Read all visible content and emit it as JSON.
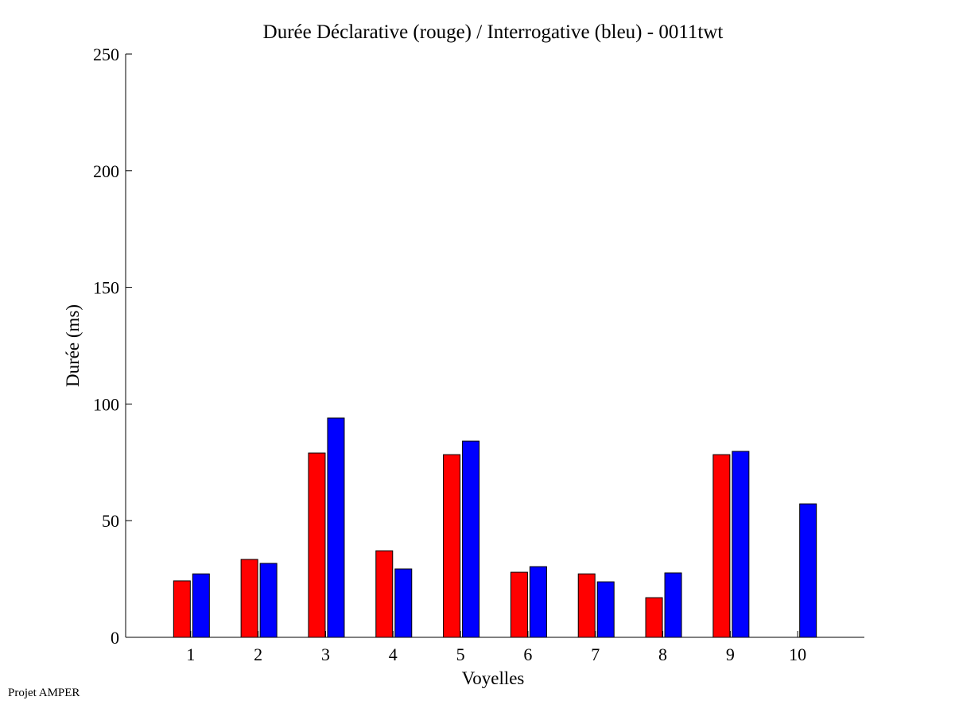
{
  "chart_data": {
    "type": "bar",
    "title": "Durée Déclarative (rouge) / Interrogative (bleu) - 0011twt",
    "xlabel": "Voyelles",
    "ylabel": "Durée (ms)",
    "ylim": [
      0,
      250
    ],
    "xlim": [
      0,
      11
    ],
    "yticks": [
      0,
      50,
      100,
      150,
      200,
      250
    ],
    "categories": [
      "1",
      "2",
      "3",
      "4",
      "5",
      "6",
      "7",
      "8",
      "9",
      "10"
    ],
    "series": [
      {
        "name": "Déclarative",
        "color": "#ff0000",
        "values": [
          24.2,
          33.4,
          79,
          37.1,
          78.3,
          27.9,
          27.2,
          17,
          78.3,
          0
        ]
      },
      {
        "name": "Interrogative",
        "color": "#0000ff",
        "values": [
          27.2,
          31.7,
          94,
          29.3,
          84.1,
          30.3,
          23.8,
          27.6,
          79.7,
          57.2
        ]
      }
    ],
    "grid": false
  },
  "footer": {
    "credit": "Projet AMPER"
  }
}
